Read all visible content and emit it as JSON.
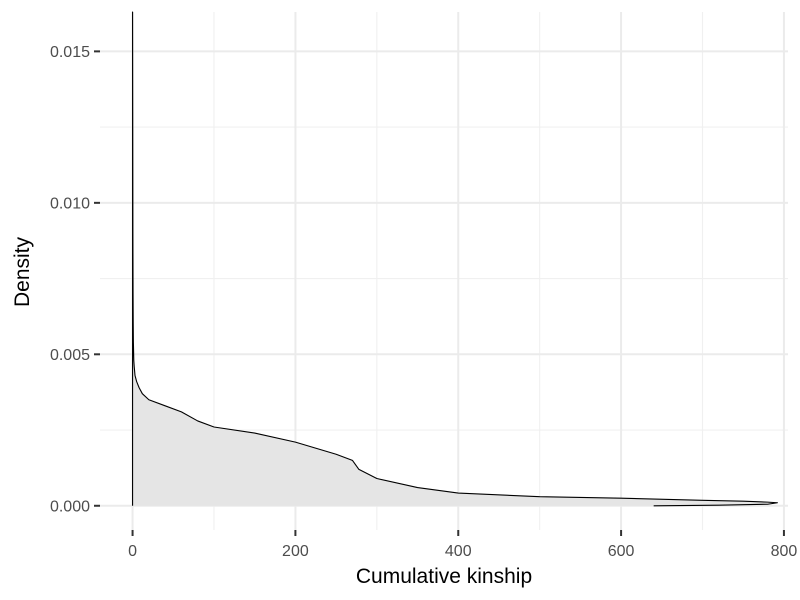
{
  "chart_data": {
    "type": "area",
    "title": "",
    "xlabel": "Cumulative kinship",
    "ylabel": "Density",
    "xlim": [
      -40,
      805
    ],
    "ylim": [
      -0.0008,
      0.0163
    ],
    "x_ticks": [
      0,
      200,
      400,
      600,
      800
    ],
    "x_tick_labels": [
      "0",
      "200",
      "400",
      "600",
      "800"
    ],
    "y_ticks": [
      0.0,
      0.005,
      0.01,
      0.015
    ],
    "y_tick_labels": [
      "0.000",
      "0.005",
      "0.010",
      "0.015"
    ],
    "grid": true,
    "fill_color": "#e5e5e5",
    "line_color": "#000000",
    "series": [
      {
        "name": "density",
        "x": [
          0,
          0,
          0.2,
          0.4,
          0.6,
          0.8,
          1.0,
          1.5,
          2,
          3,
          5,
          8,
          12,
          20,
          40,
          60,
          80,
          100,
          150,
          200,
          250,
          270,
          278,
          300,
          350,
          400,
          500,
          600,
          700,
          750,
          780,
          792,
          780,
          720,
          640
        ],
        "y": [
          0.0,
          0.0163,
          0.013,
          0.009,
          0.007,
          0.006,
          0.0054,
          0.0048,
          0.0046,
          0.0043,
          0.0041,
          0.0039,
          0.0037,
          0.0035,
          0.0033,
          0.0031,
          0.0028,
          0.0026,
          0.0024,
          0.0021,
          0.0017,
          0.0015,
          0.0012,
          0.0009,
          0.0006,
          0.00042,
          0.0003,
          0.00025,
          0.00018,
          0.00015,
          0.00012,
          0.0001,
          5e-05,
          2e-05,
          0.0
        ]
      }
    ]
  }
}
